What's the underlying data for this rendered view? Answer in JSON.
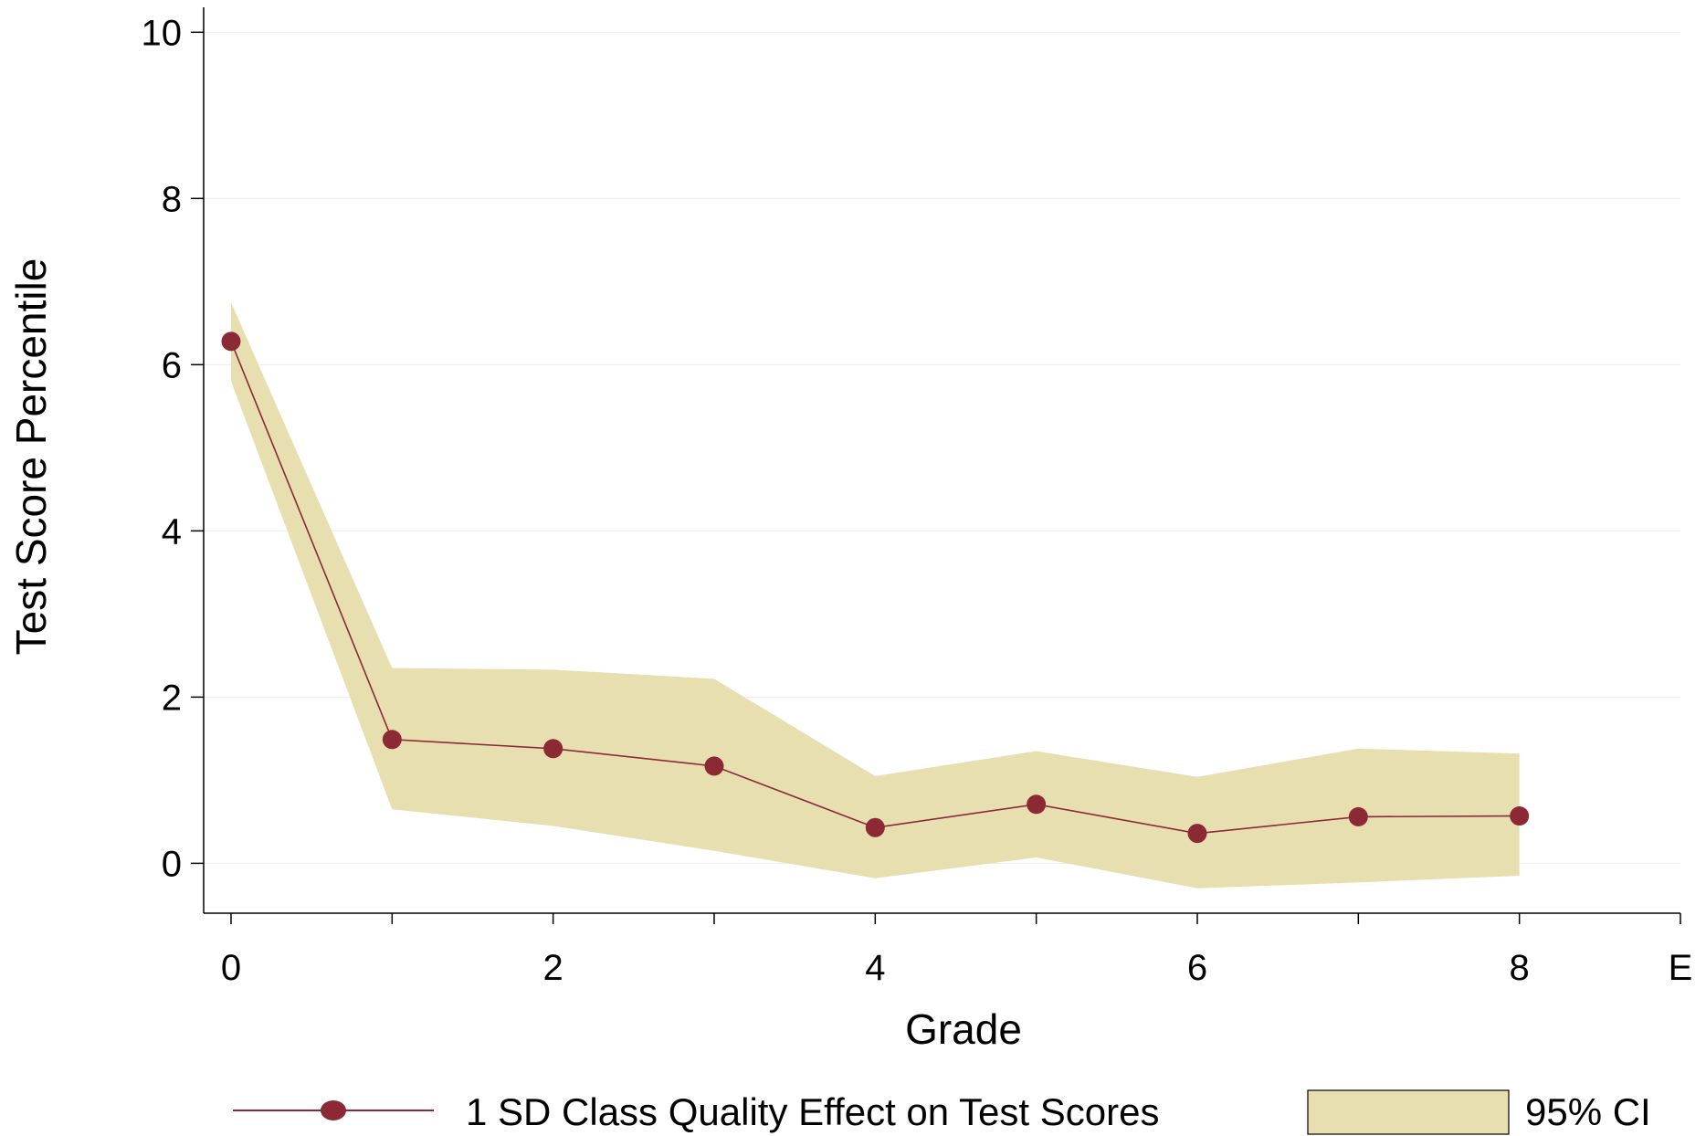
{
  "chart_data": {
    "type": "line",
    "xlabel": "Grade",
    "ylabel": "Test Score Percentile",
    "ylim": [
      -0.6,
      10.3
    ],
    "xlim": [
      -0.17,
      9.0
    ],
    "x_ticks": [
      {
        "value": 0,
        "label": "0"
      },
      {
        "value": 1,
        "label": ""
      },
      {
        "value": 2,
        "label": "2"
      },
      {
        "value": 3,
        "label": ""
      },
      {
        "value": 4,
        "label": "4"
      },
      {
        "value": 5,
        "label": ""
      },
      {
        "value": 6,
        "label": "6"
      },
      {
        "value": 7,
        "label": ""
      },
      {
        "value": 8,
        "label": "8"
      },
      {
        "value": 9,
        "label": "E"
      }
    ],
    "y_ticks": [
      0,
      2,
      4,
      6,
      8,
      10
    ],
    "grid": true,
    "legend_position": "bottom",
    "series": [
      {
        "name": "1 SD Class Quality Effect on Test Scores",
        "type": "line",
        "color": "#8B2A35",
        "x": [
          0,
          1,
          2,
          3,
          4,
          5,
          6,
          7,
          8
        ],
        "values": [
          6.28,
          1.49,
          1.38,
          1.17,
          0.43,
          0.71,
          0.36,
          0.56,
          0.57
        ]
      },
      {
        "name": "95% CI",
        "type": "band",
        "color": "#E8DFB0",
        "x": [
          0,
          1,
          2,
          3,
          4,
          5,
          6,
          7,
          8
        ],
        "lower": [
          5.8,
          0.65,
          0.45,
          0.15,
          -0.18,
          0.07,
          -0.3,
          -0.23,
          -0.15
        ],
        "upper": [
          6.75,
          2.35,
          2.33,
          2.22,
          1.05,
          1.35,
          1.04,
          1.38,
          1.32
        ]
      }
    ]
  }
}
